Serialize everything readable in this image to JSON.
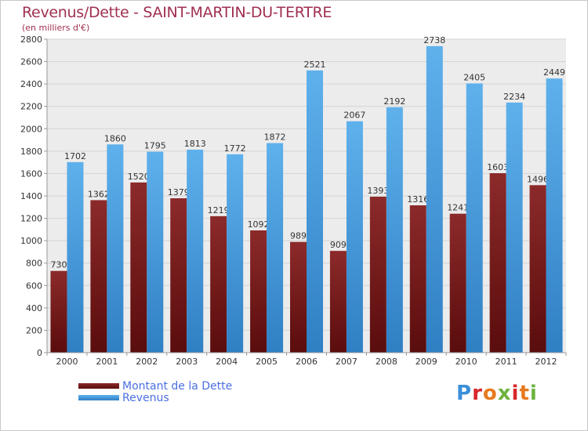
{
  "title": "Revenus/Dette - SAINT-MARTIN-DU-TERTRE",
  "subtitle": "(en milliers d'€)",
  "logo": {
    "text": "Proxiti",
    "colors": [
      "#3b8fd9",
      "#e87a1f",
      "#6cb33f",
      "#d9262b"
    ]
  },
  "chart_data": {
    "type": "bar",
    "title": "Revenus/Dette - SAINT-MARTIN-DU-TERTRE",
    "ylabel": "(en milliers d'€)",
    "xlabel": "",
    "categories": [
      "2000",
      "2001",
      "2002",
      "2003",
      "2004",
      "2005",
      "2006",
      "2007",
      "2008",
      "2009",
      "2010",
      "2011",
      "2012"
    ],
    "series": [
      {
        "name": "Montant de la Dette",
        "color": "#7a1a1a",
        "values": [
          730,
          1362,
          1520,
          1379,
          1219,
          1092,
          989,
          909,
          1393,
          1316,
          1241,
          1603,
          1496
        ],
        "labels": [
          "730",
          "1362",
          "1520",
          "1379",
          "1219",
          "1092",
          "989",
          "909",
          "1393",
          "1316",
          "1241",
          "1603",
          "1496"
        ]
      },
      {
        "name": "Revenus",
        "color": "#4ea3e3",
        "values": [
          1702,
          1860,
          1795,
          1813,
          1772,
          1872,
          2521,
          2067,
          2192,
          2738,
          2405,
          2234,
          2449
        ],
        "labels": [
          "1702",
          "1860",
          "1795",
          "1813",
          "1772",
          "1872",
          "2521",
          "2067",
          "2192",
          "2738",
          "2405",
          "2234",
          "2449"
        ]
      }
    ],
    "ylim": [
      0,
      2800
    ],
    "yticks": [
      0,
      200,
      400,
      600,
      800,
      1000,
      1200,
      1400,
      1600,
      1800,
      2000,
      2200,
      2400,
      2600,
      2800
    ],
    "ytick_labels": [
      "0",
      "200",
      "400",
      "600",
      "800",
      "1000",
      "1200",
      "1400",
      "1600",
      "1800",
      "2000",
      "2200",
      "2400",
      "2600",
      "2800"
    ],
    "grid": true,
    "legend_position": "bottom-left"
  }
}
